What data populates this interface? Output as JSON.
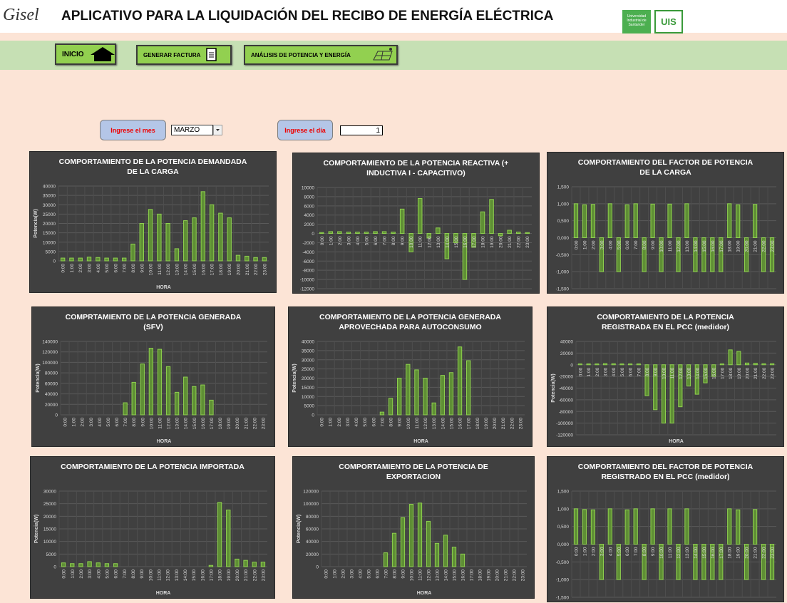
{
  "header": {
    "logo": "Gisel",
    "title": "APLICATIVO PARA LA LIQUIDACIÓN DEL RECIBO DE ENERGÍA ELÉCTRICA",
    "university": "Universidad Industrial de Santander",
    "uis": "UIS"
  },
  "nav": {
    "home": "INICIO",
    "invoice": "GENERAR FACTURA",
    "analysis": "ANÁLISIS DE POTENCIA Y ENERGÍA"
  },
  "form": {
    "month_button": "Ingrese el mes",
    "month_value": "MARZO",
    "day_button": "Ingrese el día",
    "day_value": 1
  },
  "chart_data": [
    {
      "type": "bar",
      "title": "COMPORTAMIENTO DE LA POTENCIA DEMANDADA DE LA CARGA",
      "ylabel": "Potencia(W)",
      "xlabel": "HORA",
      "color": "#5f8f35",
      "grid": true,
      "ylim": [
        0,
        40000
      ],
      "yticks": [
        0,
        5000,
        10000,
        15000,
        20000,
        25000,
        30000,
        35000,
        40000
      ],
      "categories": [
        "0:00",
        "1:00",
        "2:00",
        "3:00",
        "4:00",
        "5:00",
        "6:00",
        "7:00",
        "8:00",
        "9:00",
        "10:00",
        "11:00",
        "12:00",
        "13:00",
        "14:00",
        "15:00",
        "16:00",
        "17:00",
        "18:00",
        "19:00",
        "20:00",
        "21:00",
        "22:00",
        "23:00"
      ],
      "values": [
        1500,
        1500,
        1500,
        2000,
        1800,
        1500,
        1500,
        1500,
        9000,
        20000,
        27500,
        25000,
        20000,
        6500,
        21500,
        23000,
        37000,
        30000,
        25500,
        23000,
        3000,
        2500,
        1800,
        1800
      ]
    },
    {
      "type": "bar",
      "title": "COMPORTAMIENTO DE LA POTENCIA REACTIVA   (+ INDUCTIVA I - CAPACITIVO)",
      "color": "#5f8f35",
      "grid": true,
      "ylim": [
        -12000,
        10000
      ],
      "yticks": [
        -12000,
        -10000,
        -8000,
        -6000,
        -4000,
        -2000,
        0,
        2000,
        4000,
        6000,
        8000,
        10000
      ],
      "categories": [
        "0:00",
        "1:00",
        "2:00",
        "3:00",
        "4:00",
        "5:00",
        "6:00",
        "7:00",
        "8:00",
        "9:00",
        "10:00",
        "11:00",
        "12:00",
        "13:00",
        "14:00",
        "15:00",
        "16:00",
        "17:00",
        "18:00",
        "19:00",
        "20:00",
        "21:00",
        "22:00",
        "23:00"
      ],
      "values": [
        200,
        400,
        400,
        300,
        300,
        300,
        400,
        400,
        300,
        5300,
        -4000,
        7600,
        -1000,
        1200,
        -5500,
        -2000,
        -10000,
        -3000,
        4700,
        7400,
        -500,
        700,
        300,
        200
      ]
    },
    {
      "type": "bar",
      "title": "COMPORTAMIENTO DEL FACTOR DE POTENCIA DE LA CARGA",
      "color": "#5f8f35",
      "grid": true,
      "ylim": [
        -1.5,
        1.5
      ],
      "yticks": [
        {
          "value": -1.5,
          "label": "-1,500"
        },
        {
          "value": -1,
          "label": "-1,000"
        },
        {
          "value": -0.5,
          "label": "-0,500"
        },
        {
          "value": 0,
          "label": "0,000"
        },
        {
          "value": 0.5,
          "label": "0,500"
        },
        {
          "value": 1,
          "label": "1,000"
        },
        {
          "value": 1.5,
          "label": "1,500"
        }
      ],
      "categories": [
        "0:00",
        "1:00",
        "2:00",
        "3:00",
        "4:00",
        "5:00",
        "6:00",
        "7:00",
        "8:00",
        "9:00",
        "10:00",
        "11:00",
        "12:00",
        "13:00",
        "14:00",
        "15:00",
        "16:00",
        "17:00",
        "18:00",
        "19:00",
        "20:00",
        "21:00",
        "22:00",
        "23:00"
      ],
      "values": [
        1,
        0.97,
        0.98,
        -1,
        1,
        -1,
        0.97,
        1,
        -1,
        0.99,
        -1,
        0.99,
        -1,
        1,
        -1,
        -1,
        -1,
        -1,
        1,
        0.97,
        -1,
        0.98,
        -1,
        -1
      ]
    },
    {
      "type": "bar",
      "title": "COMPRTAMIENTO DE LA POTENCIA GENERADA (SFV)",
      "ylabel": "Potencia(W)",
      "xlabel": "HORA",
      "color": "#5f8f35",
      "grid": true,
      "ylim": [
        0,
        140000
      ],
      "yticks": [
        0,
        20000,
        40000,
        60000,
        80000,
        100000,
        120000,
        140000
      ],
      "categories": [
        "0:00",
        "1:00",
        "2:00",
        "3:00",
        "4:00",
        "5:00",
        "6:00",
        "7:00",
        "8:00",
        "9:00",
        "10:00",
        "11:00",
        "12:00",
        "13:00",
        "14:00",
        "15:00",
        "16:00",
        "17:00",
        "18:00",
        "19:00",
        "20:00",
        "21:00",
        "22:00",
        "23:00"
      ],
      "values": [
        0,
        0,
        0,
        0,
        0,
        0,
        0,
        23000,
        62000,
        97000,
        127000,
        125000,
        92000,
        43000,
        72000,
        54000,
        57000,
        28000,
        0,
        0,
        0,
        0,
        0,
        0
      ]
    },
    {
      "type": "bar",
      "title": "COMPORTAMIENTO DE LA POTENCIA GENERADA APROVECHADA PARA AUTOCONSUMO",
      "ylabel": "Potencia(W)",
      "xlabel": "HORA",
      "color": "#5f8f35",
      "grid": true,
      "ylim": [
        0,
        40000
      ],
      "yticks": [
        0,
        5000,
        10000,
        15000,
        20000,
        25000,
        30000,
        35000,
        40000
      ],
      "categories": [
        "0:00",
        "1:00",
        "2:00",
        "3:00",
        "4:00",
        "5:00",
        "6:00",
        "7:00",
        "8:00",
        "9:00",
        "10:00",
        "11:00",
        "12:00",
        "13:00",
        "14:00",
        "15:00",
        "16:00",
        "17:00",
        "18:00",
        "19:00",
        "20:00",
        "21:00",
        "22:00",
        "23:00"
      ],
      "values": [
        0,
        0,
        0,
        0,
        0,
        0,
        0,
        1500,
        9000,
        20000,
        27500,
        24500,
        20000,
        6500,
        21500,
        23000,
        37000,
        29500,
        0,
        0,
        0,
        0,
        0,
        0
      ]
    },
    {
      "type": "bar",
      "title": "COMPORTAMIENTO DE LA POTENCIA REGISTRADA EN EL PCC (medidor)",
      "ylabel": "Potencia(W)",
      "xlabel": "HORA",
      "color": "#5f8f35",
      "grid": true,
      "ylim": [
        -120000,
        40000
      ],
      "yticks": [
        -120000,
        -100000,
        -80000,
        -60000,
        -40000,
        -20000,
        0,
        20000,
        40000
      ],
      "categories": [
        "0:00",
        "1:00",
        "2:00",
        "3:00",
        "4:00",
        "5:00",
        "6:00",
        "7:00",
        "8:00",
        "9:00",
        "10:00",
        "11:00",
        "12:00",
        "13:00",
        "14:00",
        "15:00",
        "16:00",
        "17:00",
        "18:00",
        "19:00",
        "20:00",
        "21:00",
        "22:00",
        "23:00"
      ],
      "values": [
        1500,
        1500,
        1500,
        2000,
        1800,
        1500,
        1500,
        1500,
        -53000,
        -77000,
        -100000,
        -100000,
        -72000,
        -36500,
        -50500,
        -31000,
        -20000,
        1500,
        25500,
        23000,
        3000,
        2500,
        1800,
        1800
      ]
    },
    {
      "type": "bar",
      "title": "COMPORTAMIENTO DE LA POTENCIA IMPORTADA",
      "ylabel": "Potencia(W)",
      "xlabel": "HORA",
      "color": "#5f8f35",
      "grid": true,
      "ylim": [
        0,
        30000
      ],
      "yticks": [
        0,
        5000,
        10000,
        15000,
        20000,
        25000,
        30000
      ],
      "categories": [
        "0:00",
        "1:00",
        "2:00",
        "3:00",
        "4:00",
        "5:00",
        "6:00",
        "7:00",
        "8:00",
        "9:00",
        "10:00",
        "11:00",
        "12:00",
        "13:00",
        "14:00",
        "15:00",
        "16:00",
        "17:00",
        "18:00",
        "19:00",
        "20:00",
        "21:00",
        "22:00",
        "23:00"
      ],
      "values": [
        1500,
        1200,
        1200,
        2000,
        1500,
        1200,
        1200,
        0,
        0,
        0,
        0,
        0,
        0,
        0,
        0,
        0,
        0,
        500,
        25500,
        22500,
        3000,
        2500,
        1800,
        1800
      ]
    },
    {
      "type": "bar",
      "title": "COMPORTAMIENTO DE LA POTENCIA DE EXPORTACION",
      "ylabel": "Potencia(W)",
      "xlabel": "HORA",
      "color": "#5f8f35",
      "grid": true,
      "ylim": [
        0,
        120000
      ],
      "yticks": [
        0,
        20000,
        40000,
        60000,
        80000,
        100000,
        120000
      ],
      "categories": [
        "0:00",
        "1:00",
        "2:00",
        "3:00",
        "4:00",
        "5:00",
        "6:00",
        "7:00",
        "8:00",
        "9:00",
        "10:00",
        "11:00",
        "12:00",
        "13:00",
        "14:00",
        "15:00",
        "16:00",
        "17:00",
        "18:00",
        "19:00",
        "20:00",
        "21:00",
        "22:00",
        "23:00"
      ],
      "values": [
        0,
        0,
        0,
        0,
        0,
        0,
        0,
        22000,
        53000,
        78000,
        99000,
        101000,
        72000,
        37000,
        50000,
        31000,
        20000,
        0,
        0,
        0,
        0,
        0,
        0,
        0
      ]
    },
    {
      "type": "bar",
      "title": "COMPORTAMIENTO DEL FACTOR DE POTENCIA REGISTRADO EN EL PCC (medidor)",
      "color": "#5f8f35",
      "grid": true,
      "ylim": [
        -1.5,
        1.5
      ],
      "yticks": [
        {
          "value": -1.5,
          "label": "-1,500"
        },
        {
          "value": -1,
          "label": "-1,000"
        },
        {
          "value": -0.5,
          "label": "-0,500"
        },
        {
          "value": 0,
          "label": "0,000"
        },
        {
          "value": 0.5,
          "label": "0,500"
        },
        {
          "value": 1,
          "label": "1,000"
        },
        {
          "value": 1.5,
          "label": "1,500"
        }
      ],
      "categories": [
        "0:00",
        "1:00",
        "2:00",
        "3:00",
        "4:00",
        "5:00",
        "6:00",
        "7:00",
        "8:00",
        "9:00",
        "10:00",
        "11:00",
        "12:00",
        "13:00",
        "14:00",
        "15:00",
        "16:00",
        "17:00",
        "18:00",
        "19:00",
        "20:00",
        "21:00",
        "22:00",
        "23:00"
      ],
      "values": [
        1,
        0.98,
        0.97,
        -1,
        1,
        -1,
        0.97,
        1,
        -1,
        1,
        -1,
        1,
        -1,
        1,
        -1,
        -1,
        -1,
        -1,
        1,
        0.97,
        -1,
        0.98,
        -1,
        -1
      ]
    }
  ]
}
